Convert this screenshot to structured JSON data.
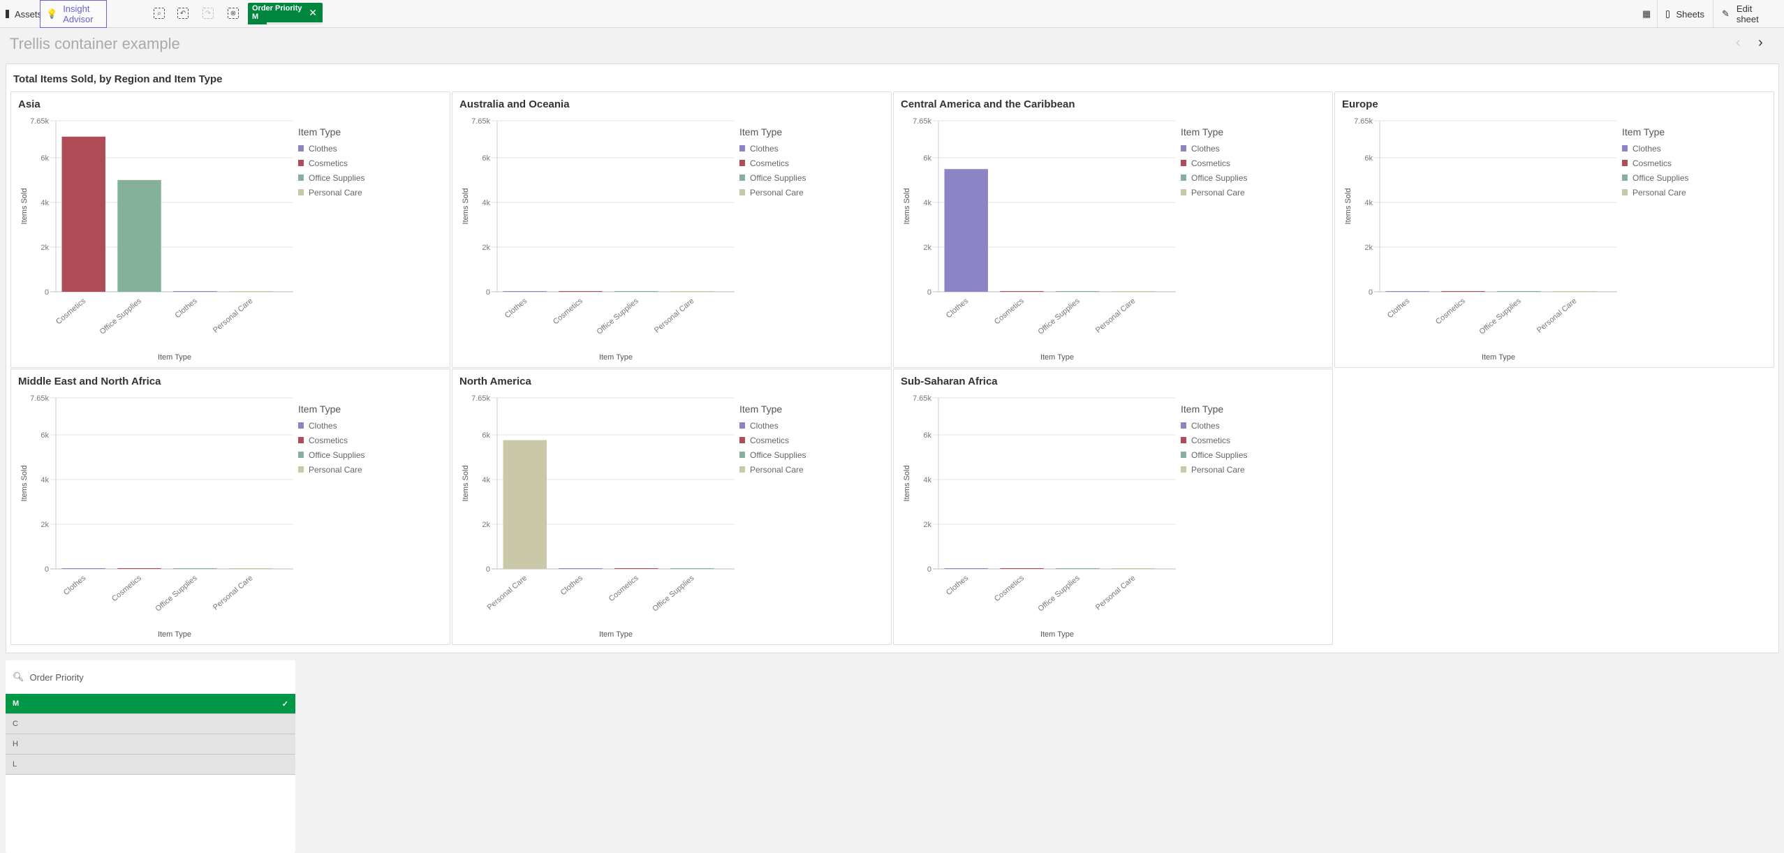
{
  "toolbar": {
    "assets": "Assets",
    "insight_advisor": "Insight Advisor",
    "selection_chip": {
      "field": "Order Priority",
      "value": "M"
    },
    "sheets": "Sheets",
    "edit_sheet": "Edit sheet"
  },
  "sheet": {
    "title": "Trellis container example"
  },
  "colors": {
    "Clothes": "#8b85c6",
    "Cosmetics": "#ae4c57",
    "Office Supplies": "#85b09a",
    "Personal Care": "#c9c8a9",
    "accent": "#6a62d0",
    "selected": "#009845"
  },
  "chart_data": {
    "type": "bar",
    "title": "Total Items Sold, by Region and Item Type",
    "xlabel": "Item Type",
    "ylabel": "Items Sold",
    "ylim": [
      0,
      7650
    ],
    "y_ticks": [
      "0",
      "2k",
      "4k",
      "6k",
      "7.65k"
    ],
    "grid": true,
    "legend": {
      "title": "Item Type",
      "position": "right",
      "entries": [
        "Clothes",
        "Cosmetics",
        "Office Supplies",
        "Personal Care"
      ]
    },
    "panels": [
      {
        "region": "Asia",
        "categories": [
          "Cosmetics",
          "Office Supplies",
          "Clothes",
          "Personal Care"
        ],
        "values": [
          6940,
          5000,
          0,
          0
        ]
      },
      {
        "region": "Australia and Oceania",
        "categories": [
          "Clothes",
          "Cosmetics",
          "Office Supplies",
          "Personal Care"
        ],
        "values": [
          0,
          0,
          0,
          0
        ]
      },
      {
        "region": "Central America and the Caribbean",
        "categories": [
          "Clothes",
          "Cosmetics",
          "Office Supplies",
          "Personal Care"
        ],
        "values": [
          5490,
          0,
          0,
          0
        ]
      },
      {
        "region": "Europe",
        "categories": [
          "Clothes",
          "Cosmetics",
          "Office Supplies",
          "Personal Care"
        ],
        "values": [
          0,
          0,
          0,
          0
        ]
      },
      {
        "region": "Middle East and North Africa",
        "categories": [
          "Clothes",
          "Cosmetics",
          "Office Supplies",
          "Personal Care"
        ],
        "values": [
          0,
          0,
          0,
          0
        ]
      },
      {
        "region": "North America",
        "categories": [
          "Personal Care",
          "Clothes",
          "Cosmetics",
          "Office Supplies"
        ],
        "values": [
          5760,
          0,
          0,
          0
        ]
      },
      {
        "region": "Sub-Saharan Africa",
        "categories": [
          "Clothes",
          "Cosmetics",
          "Office Supplies",
          "Personal Care"
        ],
        "values": [
          0,
          0,
          0,
          0
        ]
      }
    ]
  },
  "filter": {
    "title": "Order Priority",
    "items": [
      {
        "label": "M",
        "selected": true
      },
      {
        "label": "C"
      },
      {
        "label": "H"
      },
      {
        "label": "L"
      }
    ]
  }
}
